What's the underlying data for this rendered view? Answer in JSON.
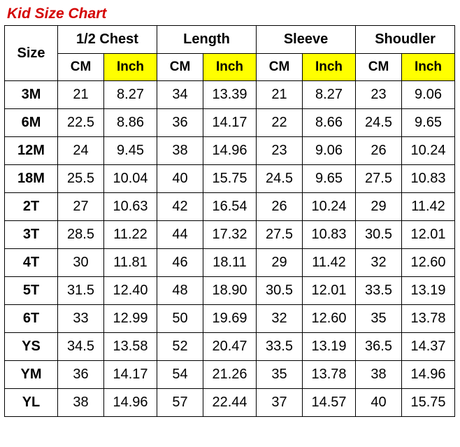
{
  "title": "Kid Size Chart",
  "headers": {
    "size": "Size",
    "groups": [
      "1/2 Chest",
      "Length",
      "Sleeve",
      "Shoudler"
    ],
    "cm": "CM",
    "inch": "Inch"
  },
  "colors": {
    "title": "#d40000",
    "inch_bg": "#ffff00",
    "border": "#000000",
    "background": "#ffffff"
  },
  "rows": [
    {
      "size": "3M",
      "chest_cm": "21",
      "chest_in": "8.27",
      "length_cm": "34",
      "length_in": "13.39",
      "sleeve_cm": "21",
      "sleeve_in": "8.27",
      "shoulder_cm": "23",
      "shoulder_in": "9.06"
    },
    {
      "size": "6M",
      "chest_cm": "22.5",
      "chest_in": "8.86",
      "length_cm": "36",
      "length_in": "14.17",
      "sleeve_cm": "22",
      "sleeve_in": "8.66",
      "shoulder_cm": "24.5",
      "shoulder_in": "9.65"
    },
    {
      "size": "12M",
      "chest_cm": "24",
      "chest_in": "9.45",
      "length_cm": "38",
      "length_in": "14.96",
      "sleeve_cm": "23",
      "sleeve_in": "9.06",
      "shoulder_cm": "26",
      "shoulder_in": "10.24"
    },
    {
      "size": "18M",
      "chest_cm": "25.5",
      "chest_in": "10.04",
      "length_cm": "40",
      "length_in": "15.75",
      "sleeve_cm": "24.5",
      "sleeve_in": "9.65",
      "shoulder_cm": "27.5",
      "shoulder_in": "10.83"
    },
    {
      "size": "2T",
      "chest_cm": "27",
      "chest_in": "10.63",
      "length_cm": "42",
      "length_in": "16.54",
      "sleeve_cm": "26",
      "sleeve_in": "10.24",
      "shoulder_cm": "29",
      "shoulder_in": "11.42"
    },
    {
      "size": "3T",
      "chest_cm": "28.5",
      "chest_in": "11.22",
      "length_cm": "44",
      "length_in": "17.32",
      "sleeve_cm": "27.5",
      "sleeve_in": "10.83",
      "shoulder_cm": "30.5",
      "shoulder_in": "12.01"
    },
    {
      "size": "4T",
      "chest_cm": "30",
      "chest_in": "11.81",
      "length_cm": "46",
      "length_in": "18.11",
      "sleeve_cm": "29",
      "sleeve_in": "11.42",
      "shoulder_cm": "32",
      "shoulder_in": "12.60"
    },
    {
      "size": "5T",
      "chest_cm": "31.5",
      "chest_in": "12.40",
      "length_cm": "48",
      "length_in": "18.90",
      "sleeve_cm": "30.5",
      "sleeve_in": "12.01",
      "shoulder_cm": "33.5",
      "shoulder_in": "13.19"
    },
    {
      "size": "6T",
      "chest_cm": "33",
      "chest_in": "12.99",
      "length_cm": "50",
      "length_in": "19.69",
      "sleeve_cm": "32",
      "sleeve_in": "12.60",
      "shoulder_cm": "35",
      "shoulder_in": "13.78"
    },
    {
      "size": "YS",
      "chest_cm": "34.5",
      "chest_in": "13.58",
      "length_cm": "52",
      "length_in": "20.47",
      "sleeve_cm": "33.5",
      "sleeve_in": "13.19",
      "shoulder_cm": "36.5",
      "shoulder_in": "14.37"
    },
    {
      "size": "YM",
      "chest_cm": "36",
      "chest_in": "14.17",
      "length_cm": "54",
      "length_in": "21.26",
      "sleeve_cm": "35",
      "sleeve_in": "13.78",
      "shoulder_cm": "38",
      "shoulder_in": "14.96"
    },
    {
      "size": "YL",
      "chest_cm": "38",
      "chest_in": "14.96",
      "length_cm": "57",
      "length_in": "22.44",
      "sleeve_cm": "37",
      "sleeve_in": "14.57",
      "shoulder_cm": "40",
      "shoulder_in": "15.75"
    }
  ]
}
